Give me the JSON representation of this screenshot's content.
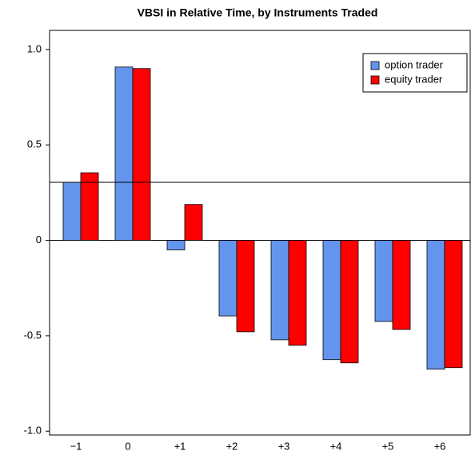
{
  "chart_data": {
    "type": "bar",
    "title": "VBSI in Relative Time, by Instruments Traded",
    "categories": [
      "−1",
      "0",
      "+1",
      "+2",
      "+3",
      "+4",
      "+5",
      "+6"
    ],
    "series": [
      {
        "name": "option trader",
        "color": "#6495ed",
        "values": [
          0.304,
          0.908,
          -0.05,
          -0.396,
          -0.521,
          -0.625,
          -0.425,
          -0.675
        ]
      },
      {
        "name": "equity trader",
        "color": "#ff0000",
        "values": [
          0.354,
          0.9,
          0.188,
          -0.479,
          -0.55,
          -0.642,
          -0.467,
          -0.667
        ]
      }
    ],
    "reference_line": 0.304,
    "ylim": [
      -1.02,
      1.1
    ],
    "yticks": [
      {
        "value": 1,
        "label": "1.0"
      },
      0.5,
      0,
      -0.5,
      {
        "value": -1,
        "label": "-1.0"
      }
    ],
    "legend": "top-right"
  }
}
